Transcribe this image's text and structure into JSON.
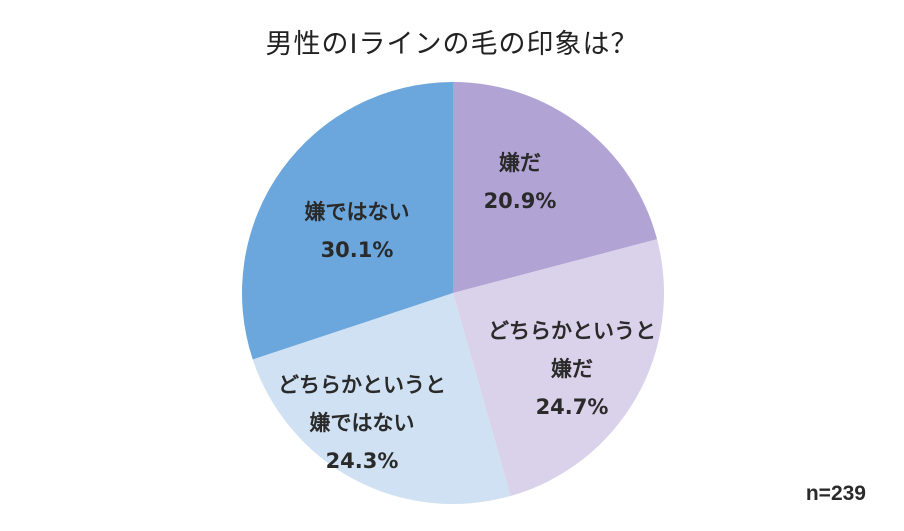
{
  "title": "男性のIラインの毛の印象は？",
  "sample_size": "n=239",
  "slices": [
    {
      "label_lines": [
        "嫌だ"
      ],
      "value_label": "20.9%",
      "color": "#b1a3d4"
    },
    {
      "label_lines": [
        "どちらかというと",
        "嫌だ"
      ],
      "value_label": "24.7%",
      "color": "#dad1ea"
    },
    {
      "label_lines": [
        "どちらかというと",
        "嫌ではない"
      ],
      "value_label": "24.3%",
      "color": "#cfe1f3"
    },
    {
      "label_lines": [
        "嫌ではない"
      ],
      "value_label": "30.1%",
      "color": "#6ba7dc"
    }
  ],
  "chart_data": {
    "type": "pie",
    "title": "男性のIラインの毛の印象は？",
    "categories": [
      "嫌だ",
      "どちらかというと嫌だ",
      "どちらかというと嫌ではない",
      "嫌ではない"
    ],
    "values": [
      20.9,
      24.7,
      24.3,
      30.1
    ],
    "unit": "%",
    "colors": [
      "#b1a3d4",
      "#dad1ea",
      "#cfe1f3",
      "#6ba7dc"
    ],
    "start_angle": "12 o'clock",
    "direction": "clockwise",
    "legend": "none (labels inside slices)",
    "annotation": "n=239"
  }
}
